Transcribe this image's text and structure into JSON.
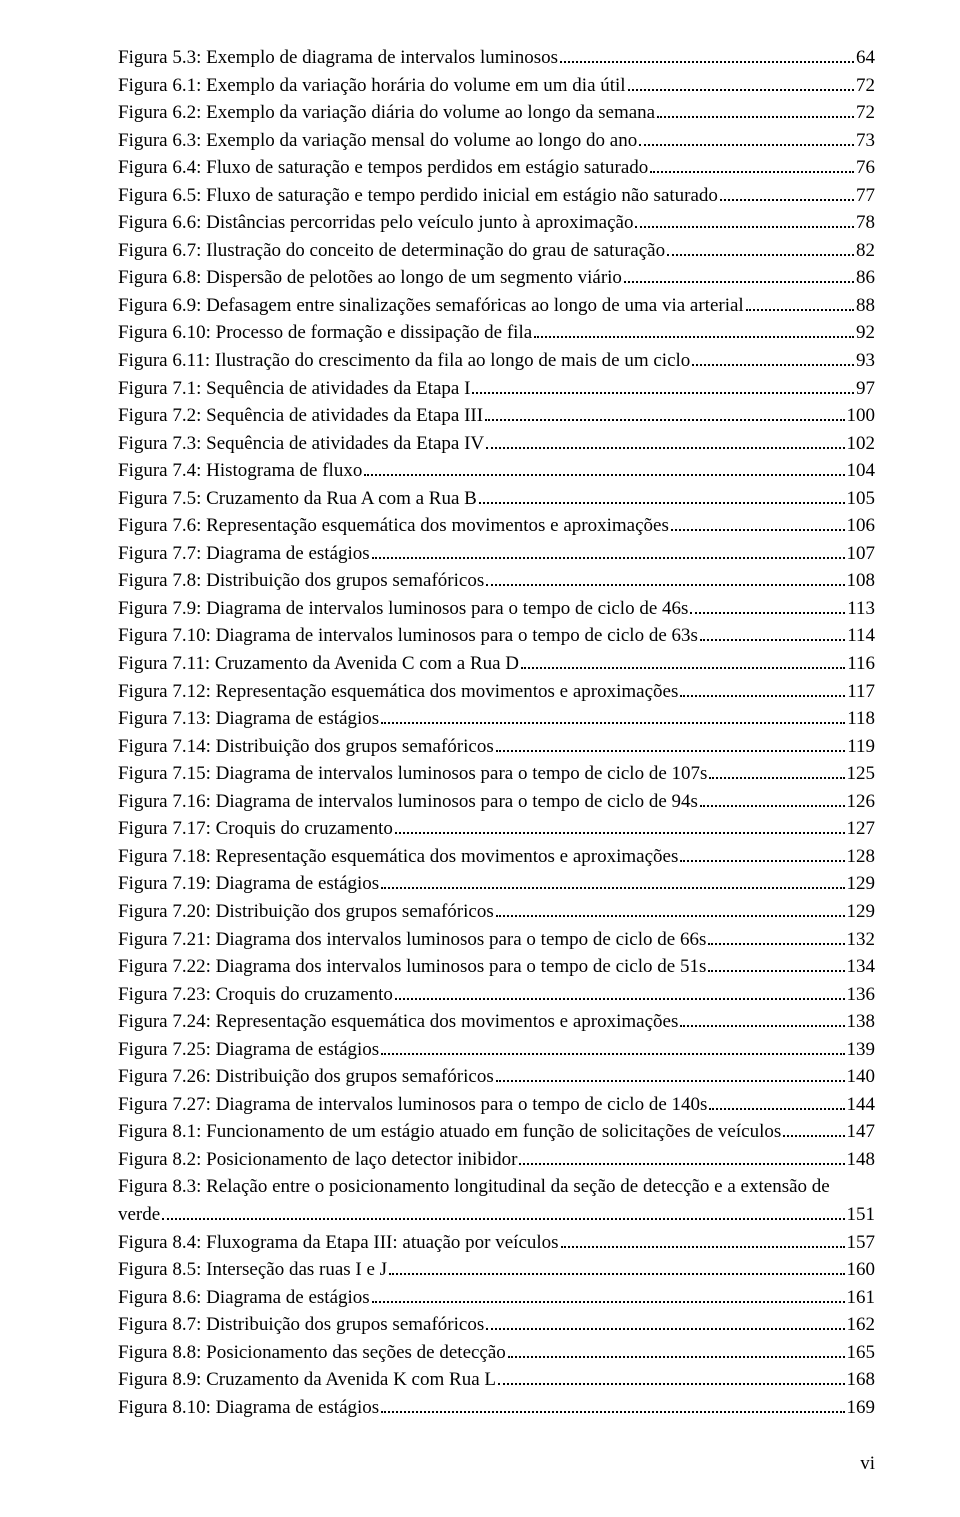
{
  "page_number_label": "vi",
  "font": {
    "family": "Times New Roman",
    "size_pt": 14,
    "color": "#000000"
  },
  "background_color": "#ffffff",
  "entries": [
    {
      "label": "Figura 5.3: Exemplo de diagrama de intervalos luminosos",
      "page": "64"
    },
    {
      "label": "Figura 6.1: Exemplo da variação horária do volume em um dia útil",
      "page": "72"
    },
    {
      "label": "Figura 6.2: Exemplo da variação diária do volume ao longo da semana",
      "page": "72"
    },
    {
      "label": "Figura 6.3: Exemplo da variação mensal do volume ao longo do ano",
      "page": "73"
    },
    {
      "label": "Figura 6.4: Fluxo de saturação e tempos perdidos em estágio saturado",
      "page": "76"
    },
    {
      "label": "Figura 6.5: Fluxo de saturação e tempo perdido inicial em estágio não saturado",
      "page": "77"
    },
    {
      "label": "Figura 6.6: Distâncias percorridas pelo veículo junto à aproximação",
      "page": "78"
    },
    {
      "label": "Figura 6.7: Ilustração do conceito de determinação do grau de saturação",
      "page": "82"
    },
    {
      "label": "Figura 6.8: Dispersão de pelotões ao longo de um segmento viário",
      "page": "86"
    },
    {
      "label": "Figura 6.9: Defasagem entre sinalizações semafóricas ao longo de uma via arterial",
      "page": "88"
    },
    {
      "label": "Figura 6.10: Processo de formação e dissipação de fila",
      "page": "92"
    },
    {
      "label": "Figura 6.11: Ilustração do crescimento da fila ao longo de mais de um ciclo",
      "page": "93"
    },
    {
      "label": "Figura 7.1: Sequência de atividades da Etapa I",
      "page": "97"
    },
    {
      "label": "Figura 7.2: Sequência de atividades da Etapa III",
      "page": "100"
    },
    {
      "label": "Figura 7.3: Sequência de atividades da Etapa IV",
      "page": "102"
    },
    {
      "label": "Figura 7.4: Histograma de fluxo",
      "page": "104"
    },
    {
      "label": "Figura 7.5: Cruzamento da Rua A com a Rua B",
      "page": "105"
    },
    {
      "label": "Figura 7.6: Representação esquemática dos movimentos e aproximações",
      "page": "106"
    },
    {
      "label": "Figura 7.7: Diagrama de estágios",
      "page": "107"
    },
    {
      "label": "Figura 7.8: Distribuição dos grupos semafóricos",
      "page": "108"
    },
    {
      "label": "Figura 7.9: Diagrama de intervalos luminosos para o tempo de ciclo de 46s",
      "page": "113"
    },
    {
      "label": "Figura 7.10: Diagrama de intervalos luminosos para o tempo de ciclo de 63s",
      "page": "114"
    },
    {
      "label": "Figura 7.11: Cruzamento da Avenida C com a Rua D",
      "page": "116"
    },
    {
      "label": "Figura 7.12: Representação esquemática dos movimentos e aproximações",
      "page": "117"
    },
    {
      "label": "Figura 7.13: Diagrama de estágios",
      "page": "118"
    },
    {
      "label": "Figura 7.14: Distribuição dos grupos semafóricos",
      "page": "119"
    },
    {
      "label": "Figura 7.15: Diagrama de intervalos luminosos para o tempo de ciclo de 107s",
      "page": "125"
    },
    {
      "label": "Figura 7.16: Diagrama de intervalos luminosos para o tempo de ciclo de 94s",
      "page": "126"
    },
    {
      "label": "Figura 7.17: Croquis do cruzamento",
      "page": "127"
    },
    {
      "label": "Figura 7.18: Representação esquemática dos movimentos e aproximações",
      "page": "128"
    },
    {
      "label": "Figura 7.19: Diagrama de estágios",
      "page": "129"
    },
    {
      "label": "Figura 7.20: Distribuição dos grupos semafóricos",
      "page": "129"
    },
    {
      "label": "Figura 7.21: Diagrama dos intervalos luminosos para o tempo de ciclo de 66s",
      "page": "132"
    },
    {
      "label": "Figura 7.22: Diagrama dos intervalos luminosos para o tempo de ciclo de 51s",
      "page": "134"
    },
    {
      "label": "Figura 7.23: Croquis do cruzamento",
      "page": "136"
    },
    {
      "label": "Figura 7.24: Representação esquemática dos movimentos e aproximações",
      "page": "138"
    },
    {
      "label": "Figura 7.25: Diagrama de estágios",
      "page": "139"
    },
    {
      "label": "Figura 7.26: Distribuição dos grupos semafóricos",
      "page": "140"
    },
    {
      "label": "Figura 7.27: Diagrama de intervalos luminosos para o tempo de ciclo de 140s",
      "page": "144"
    },
    {
      "label": "Figura 8.1: Funcionamento de um estágio atuado em função de solicitações de veículos",
      "page": "147"
    },
    {
      "label": "Figura 8.2: Posicionamento de laço detector inibidor",
      "page": "148"
    },
    {
      "label_line1": "Figura 8.3: Relação entre o posicionamento longitudinal da seção de detecção e a extensão de",
      "label_line2": "verde",
      "page": "151",
      "wrap": true
    },
    {
      "label": "Figura 8.4: Fluxograma da Etapa III: atuação por veículos",
      "page": "157"
    },
    {
      "label": "Figura 8.5: Interseção das ruas I e J",
      "page": "160"
    },
    {
      "label": "Figura 8.6: Diagrama de estágios",
      "page": "161"
    },
    {
      "label": "Figura 8.7: Distribuição dos grupos semafóricos",
      "page": "162"
    },
    {
      "label": "Figura 8.8: Posicionamento das seções de detecção",
      "page": "165"
    },
    {
      "label": "Figura 8.9: Cruzamento da Avenida K com Rua L",
      "page": "168"
    },
    {
      "label": "Figura 8.10: Diagrama de estágios",
      "page": "169"
    }
  ]
}
